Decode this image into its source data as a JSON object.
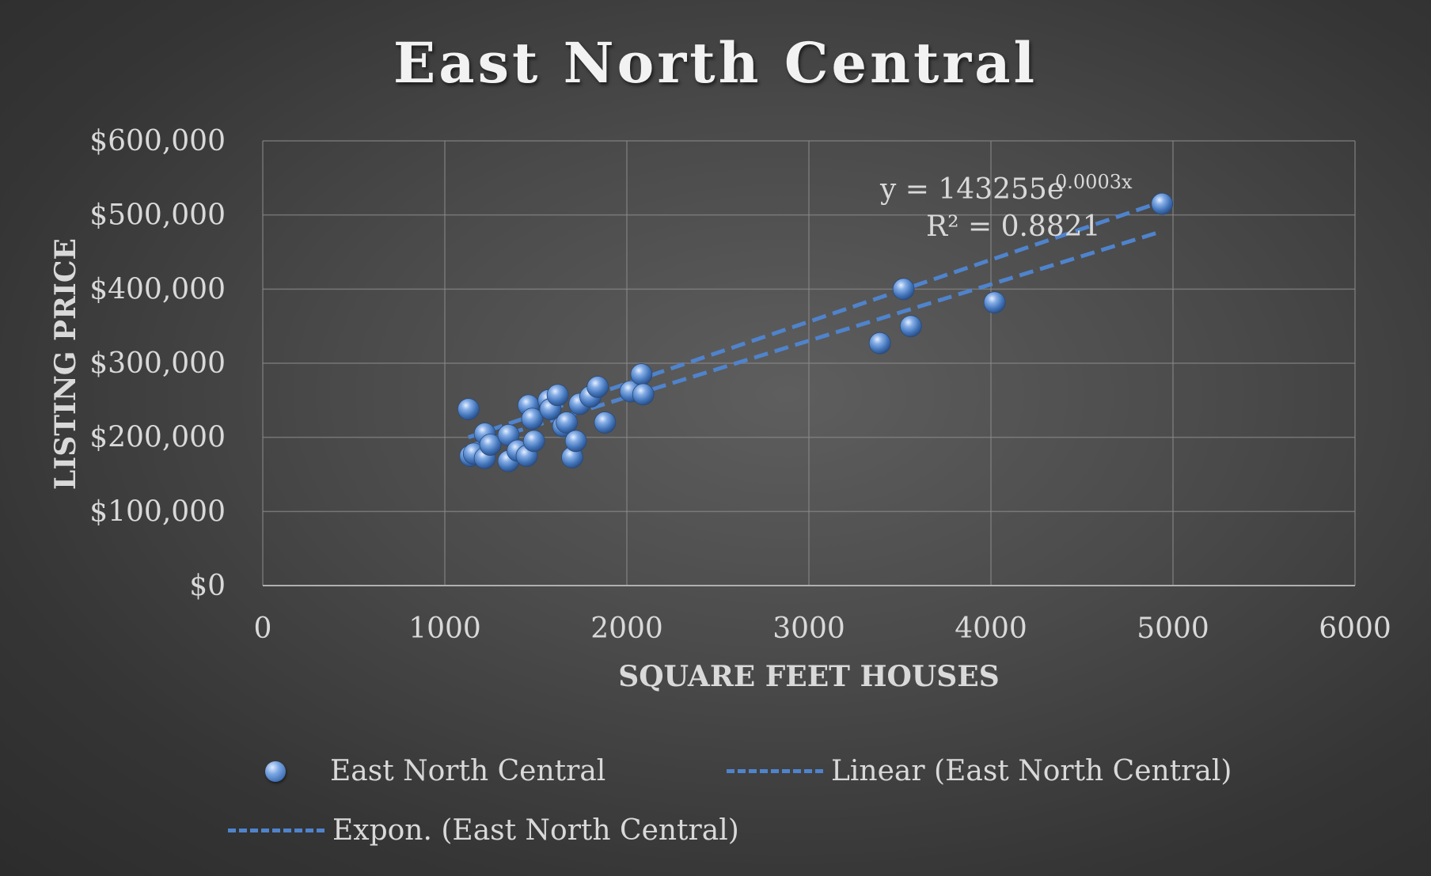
{
  "chart_data": {
    "type": "scatter",
    "title": "East North Central",
    "xlabel": "SQUARE FEET HOUSES",
    "ylabel": "LISTING PRICE",
    "xlim": [
      0,
      6000
    ],
    "ylim": [
      0,
      600000
    ],
    "x_ticks": [
      "0",
      "1000",
      "2000",
      "3000",
      "4000",
      "5000",
      "6000"
    ],
    "y_ticks": [
      "$0",
      "$100,000",
      "$200,000",
      "$300,000",
      "$400,000",
      "$500,000",
      "$600,000"
    ],
    "grid": true,
    "legend_position": "bottom",
    "series": [
      {
        "name": "East North Central",
        "kind": "points",
        "color": "#4f83cc",
        "points": [
          [
            1130,
            238000
          ],
          [
            1140,
            175000
          ],
          [
            1160,
            178000
          ],
          [
            1220,
            172000
          ],
          [
            1220,
            205000
          ],
          [
            1250,
            190000
          ],
          [
            1350,
            203000
          ],
          [
            1350,
            168000
          ],
          [
            1400,
            182000
          ],
          [
            1450,
            175000
          ],
          [
            1460,
            243000
          ],
          [
            1480,
            225000
          ],
          [
            1490,
            195000
          ],
          [
            1570,
            250000
          ],
          [
            1580,
            238000
          ],
          [
            1620,
            257000
          ],
          [
            1650,
            215000
          ],
          [
            1670,
            220000
          ],
          [
            1700,
            173000
          ],
          [
            1720,
            195000
          ],
          [
            1740,
            245000
          ],
          [
            1800,
            255000
          ],
          [
            1840,
            268000
          ],
          [
            1880,
            220000
          ],
          [
            2020,
            262000
          ],
          [
            2080,
            285000
          ],
          [
            2090,
            258000
          ],
          [
            3390,
            327000
          ],
          [
            3520,
            400000
          ],
          [
            3560,
            350000
          ],
          [
            4020,
            382000
          ],
          [
            4940,
            515000
          ]
        ]
      },
      {
        "name": "Linear (East North Central)",
        "kind": "trendline",
        "style": "dashed",
        "color": "#4f83cc",
        "x": [
          1130,
          4940
        ],
        "y": [
          188000,
          478000
        ]
      },
      {
        "name": "Expon. (East North Central)",
        "kind": "trendline",
        "style": "dashed",
        "color": "#4f83cc",
        "x": [
          1130,
          4940
        ],
        "y": [
          200000,
          518000
        ]
      }
    ],
    "annotations": {
      "equation_prefix": "y = 143255e",
      "equation_exponent": "0.0003x",
      "r_squared": "R² = 0.8821"
    }
  },
  "legend": {
    "items": [
      {
        "label": "East North Central",
        "marker": "sphere"
      },
      {
        "label": "Linear (East North Central)",
        "marker": "dashed-line"
      },
      {
        "label": "Expon. (East North Central)",
        "marker": "dashed-line"
      }
    ]
  }
}
